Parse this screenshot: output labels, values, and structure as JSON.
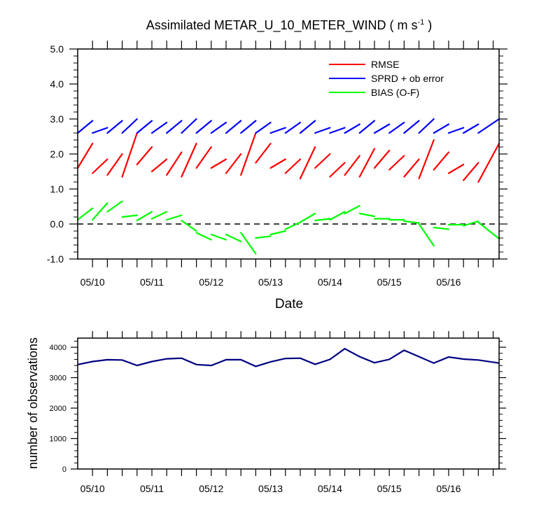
{
  "chart_data": [
    {
      "type": "line",
      "title_main": "Assimilated METAR_U_10_METER_WIND ( m s",
      "title_sup": "-1",
      "title_end": " )",
      "xlabel": "Date",
      "ylabel": "",
      "ylim": [
        -1.0,
        5.0
      ],
      "xlim": [
        0,
        7.1
      ],
      "yticks": [
        -1.0,
        0.0,
        1.0,
        2.0,
        3.0,
        4.0,
        5.0
      ],
      "ytick_labels": [
        "-1.0",
        "0.0",
        "1.0",
        "2.0",
        "3.0",
        "4.0",
        "5.0"
      ],
      "xtick_labels": [
        "05/10",
        "05/11",
        "05/12",
        "05/13",
        "05/14",
        "05/15",
        "05/16"
      ],
      "xtick_positions": [
        0.25,
        1.25,
        2.25,
        3.25,
        4.25,
        5.25,
        6.25
      ],
      "zero_line": 0.0,
      "legend": "top-right",
      "series": [
        {
          "name": "RMSE",
          "color": "#ff0000",
          "segments": [
            [
              [
                0,
                1.6
              ],
              [
                0.25,
                2.3
              ]
            ],
            [
              [
                0.25,
                1.45
              ],
              [
                0.5,
                1.85
              ]
            ],
            [
              [
                0.5,
                1.4
              ],
              [
                0.75,
                2.0
              ]
            ],
            [
              [
                0.75,
                1.35
              ],
              [
                1.0,
                2.6
              ]
            ],
            [
              [
                1.0,
                1.7
              ],
              [
                1.25,
                2.2
              ]
            ],
            [
              [
                1.25,
                1.5
              ],
              [
                1.5,
                1.85
              ]
            ],
            [
              [
                1.5,
                1.4
              ],
              [
                1.75,
                2.05
              ]
            ],
            [
              [
                1.75,
                1.35
              ],
              [
                2.0,
                2.3
              ]
            ],
            [
              [
                2.0,
                1.6
              ],
              [
                2.25,
                2.2
              ]
            ],
            [
              [
                2.25,
                1.6
              ],
              [
                2.5,
                1.85
              ]
            ],
            [
              [
                2.5,
                1.45
              ],
              [
                2.75,
                2.0
              ]
            ],
            [
              [
                2.75,
                1.4
              ],
              [
                3.0,
                2.6
              ]
            ],
            [
              [
                3.0,
                1.75
              ],
              [
                3.25,
                2.3
              ]
            ],
            [
              [
                3.25,
                1.6
              ],
              [
                3.5,
                1.85
              ]
            ],
            [
              [
                3.5,
                1.45
              ],
              [
                3.75,
                1.85
              ]
            ],
            [
              [
                3.75,
                1.3
              ],
              [
                4.0,
                2.2
              ]
            ],
            [
              [
                4.0,
                1.6
              ],
              [
                4.25,
                2.0
              ]
            ],
            [
              [
                4.25,
                1.35
              ],
              [
                4.5,
                1.75
              ]
            ],
            [
              [
                4.5,
                1.4
              ],
              [
                4.75,
                1.95
              ]
            ],
            [
              [
                4.75,
                1.35
              ],
              [
                5.0,
                2.15
              ]
            ],
            [
              [
                5.0,
                1.6
              ],
              [
                5.25,
                2.1
              ]
            ],
            [
              [
                5.25,
                1.55
              ],
              [
                5.5,
                1.95
              ]
            ],
            [
              [
                5.5,
                1.35
              ],
              [
                5.75,
                1.85
              ]
            ],
            [
              [
                5.75,
                1.3
              ],
              [
                6.0,
                2.4
              ]
            ],
            [
              [
                6.0,
                1.55
              ],
              [
                6.25,
                2.05
              ]
            ],
            [
              [
                6.25,
                1.45
              ],
              [
                6.5,
                1.7
              ]
            ],
            [
              [
                6.5,
                1.25
              ],
              [
                6.75,
                1.75
              ]
            ],
            [
              [
                6.75,
                1.2
              ],
              [
                7.1,
                2.3
              ]
            ]
          ]
        },
        {
          "name": "SPRD + ob error",
          "color": "#0000ff",
          "segments": [
            [
              [
                0,
                2.6
              ],
              [
                0.25,
                2.95
              ]
            ],
            [
              [
                0.25,
                2.6
              ],
              [
                0.5,
                2.75
              ]
            ],
            [
              [
                0.5,
                2.6
              ],
              [
                0.75,
                2.95
              ]
            ],
            [
              [
                0.75,
                2.6
              ],
              [
                1.0,
                3.0
              ]
            ],
            [
              [
                1.0,
                2.6
              ],
              [
                1.25,
                2.95
              ]
            ],
            [
              [
                1.25,
                2.6
              ],
              [
                1.5,
                2.9
              ]
            ],
            [
              [
                1.5,
                2.6
              ],
              [
                1.75,
                2.95
              ]
            ],
            [
              [
                1.75,
                2.6
              ],
              [
                2.0,
                3.0
              ]
            ],
            [
              [
                2.0,
                2.6
              ],
              [
                2.25,
                2.95
              ]
            ],
            [
              [
                2.25,
                2.6
              ],
              [
                2.5,
                2.9
              ]
            ],
            [
              [
                2.5,
                2.6
              ],
              [
                2.75,
                2.95
              ]
            ],
            [
              [
                2.75,
                2.6
              ],
              [
                3.0,
                2.95
              ]
            ],
            [
              [
                3.0,
                2.6
              ],
              [
                3.25,
                2.9
              ]
            ],
            [
              [
                3.25,
                2.6
              ],
              [
                3.5,
                2.75
              ]
            ],
            [
              [
                3.5,
                2.6
              ],
              [
                3.75,
                2.9
              ]
            ],
            [
              [
                3.75,
                2.6
              ],
              [
                4.0,
                2.95
              ]
            ],
            [
              [
                4.0,
                2.6
              ],
              [
                4.25,
                2.75
              ]
            ],
            [
              [
                4.25,
                2.6
              ],
              [
                4.5,
                2.75
              ]
            ],
            [
              [
                4.5,
                2.6
              ],
              [
                4.75,
                2.85
              ]
            ],
            [
              [
                4.75,
                2.6
              ],
              [
                5.0,
                2.95
              ]
            ],
            [
              [
                5.0,
                2.6
              ],
              [
                5.25,
                2.85
              ]
            ],
            [
              [
                5.25,
                2.6
              ],
              [
                5.5,
                2.9
              ]
            ],
            [
              [
                5.5,
                2.6
              ],
              [
                5.75,
                2.95
              ]
            ],
            [
              [
                5.75,
                2.6
              ],
              [
                6.0,
                3.0
              ]
            ],
            [
              [
                6.0,
                2.6
              ],
              [
                6.25,
                2.85
              ]
            ],
            [
              [
                6.25,
                2.6
              ],
              [
                6.5,
                2.75
              ]
            ],
            [
              [
                6.5,
                2.6
              ],
              [
                6.75,
                2.85
              ]
            ],
            [
              [
                6.75,
                2.6
              ],
              [
                7.1,
                3.0
              ]
            ]
          ]
        },
        {
          "name": "BIAS (O-F)",
          "color": "#00ff00",
          "segments": [
            [
              [
                0,
                0.12
              ],
              [
                0.25,
                0.45
              ]
            ],
            [
              [
                0.25,
                0.12
              ],
              [
                0.5,
                0.6
              ]
            ],
            [
              [
                0.5,
                0.35
              ],
              [
                0.75,
                0.65
              ]
            ],
            [
              [
                0.75,
                0.2
              ],
              [
                1.0,
                0.25
              ]
            ],
            [
              [
                1.0,
                0.1
              ],
              [
                1.25,
                0.35
              ]
            ],
            [
              [
                1.25,
                0.15
              ],
              [
                1.5,
                0.35
              ]
            ],
            [
              [
                1.5,
                0.12
              ],
              [
                1.75,
                0.25
              ]
            ],
            [
              [
                1.75,
                0.1
              ],
              [
                2.0,
                -0.2
              ]
            ],
            [
              [
                2.0,
                -0.25
              ],
              [
                2.25,
                -0.45
              ]
            ],
            [
              [
                2.25,
                -0.3
              ],
              [
                2.5,
                -0.45
              ]
            ],
            [
              [
                2.5,
                -0.3
              ],
              [
                2.75,
                -0.5
              ]
            ],
            [
              [
                2.75,
                -0.25
              ],
              [
                3.0,
                -0.85
              ]
            ],
            [
              [
                3.0,
                -0.4
              ],
              [
                3.25,
                -0.35
              ]
            ],
            [
              [
                3.25,
                -0.3
              ],
              [
                3.5,
                -0.2
              ]
            ],
            [
              [
                3.5,
                -0.15
              ],
              [
                3.75,
                0.05
              ]
            ],
            [
              [
                3.75,
                0.05
              ],
              [
                4.0,
                0.3
              ]
            ],
            [
              [
                4.0,
                0.1
              ],
              [
                4.25,
                0.15
              ]
            ],
            [
              [
                4.25,
                0.12
              ],
              [
                4.5,
                0.35
              ]
            ],
            [
              [
                4.5,
                0.3
              ],
              [
                4.75,
                0.52
              ]
            ],
            [
              [
                4.75,
                0.3
              ],
              [
                5.0,
                0.22
              ]
            ],
            [
              [
                5.0,
                0.15
              ],
              [
                5.25,
                0.15
              ]
            ],
            [
              [
                5.25,
                0.12
              ],
              [
                5.5,
                0.12
              ]
            ],
            [
              [
                5.5,
                0.08
              ],
              [
                5.75,
                0.03
              ]
            ],
            [
              [
                5.75,
                0.0
              ],
              [
                6.0,
                -0.62
              ]
            ],
            [
              [
                6.0,
                -0.1
              ],
              [
                6.25,
                -0.15
              ]
            ],
            [
              [
                6.25,
                -0.02
              ],
              [
                6.5,
                -0.02
              ]
            ],
            [
              [
                6.5,
                -0.05
              ],
              [
                6.75,
                0.08
              ]
            ],
            [
              [
                6.75,
                0.05
              ],
              [
                7.1,
                -0.42
              ]
            ]
          ]
        }
      ]
    },
    {
      "type": "line",
      "title": "",
      "xlabel": "",
      "ylabel": "number of observations",
      "ylim": [
        0,
        4300
      ],
      "xlim": [
        0,
        7.1
      ],
      "yticks": [
        0,
        1000,
        2000,
        3000,
        4000
      ],
      "ytick_labels": [
        "0",
        "1000",
        "2000",
        "3000",
        "4000"
      ],
      "xtick_labels": [
        "05/10",
        "05/11",
        "05/12",
        "05/13",
        "05/14",
        "05/15",
        "05/16"
      ],
      "xtick_positions": [
        0.25,
        1.25,
        2.25,
        3.25,
        4.25,
        5.25,
        6.25
      ],
      "series": [
        {
          "name": "number of observations",
          "color": "#000080",
          "x": [
            0,
            0.25,
            0.5,
            0.75,
            1.0,
            1.25,
            1.5,
            1.75,
            2.0,
            2.25,
            2.5,
            2.75,
            3.0,
            3.25,
            3.5,
            3.75,
            4.0,
            4.25,
            4.5,
            4.75,
            5.0,
            5.25,
            5.5,
            5.75,
            6.0,
            6.25,
            6.5,
            6.75,
            7.1
          ],
          "values": [
            3430,
            3530,
            3590,
            3580,
            3400,
            3530,
            3620,
            3640,
            3430,
            3400,
            3590,
            3590,
            3370,
            3520,
            3630,
            3640,
            3440,
            3600,
            3950,
            3690,
            3490,
            3600,
            3900,
            3690,
            3480,
            3680,
            3610,
            3580,
            3480
          ]
        }
      ]
    }
  ]
}
